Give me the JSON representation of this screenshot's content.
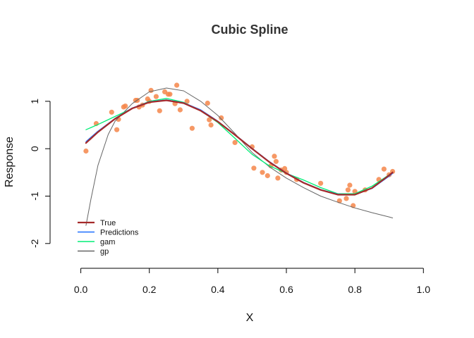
{
  "chart_data": {
    "type": "line",
    "title": "Cubic Spline",
    "xlabel": "X",
    "ylabel": "Response",
    "xlim": [
      -0.03,
      1.02
    ],
    "ylim": [
      -2.3,
      1.8
    ],
    "x_ticks": [
      0.0,
      0.2,
      0.4,
      0.6,
      0.8,
      1.0
    ],
    "x_tick_labels": [
      "0.0",
      "0.2",
      "0.4",
      "0.6",
      "0.8",
      "1.0"
    ],
    "y_ticks": [
      -2,
      -1,
      0,
      1
    ],
    "y_tick_labels": [
      "-2",
      "-1",
      "0",
      "1"
    ],
    "grid": false,
    "legend_position": "bottom-left",
    "points": {
      "color": "#f4864a",
      "x": [
        0.015,
        0.045,
        0.09,
        0.105,
        0.11,
        0.125,
        0.13,
        0.16,
        0.165,
        0.17,
        0.18,
        0.195,
        0.2,
        0.205,
        0.22,
        0.23,
        0.245,
        0.255,
        0.26,
        0.275,
        0.28,
        0.29,
        0.31,
        0.325,
        0.37,
        0.375,
        0.38,
        0.41,
        0.45,
        0.5,
        0.505,
        0.53,
        0.545,
        0.555,
        0.565,
        0.57,
        0.575,
        0.585,
        0.595,
        0.6,
        0.63,
        0.7,
        0.755,
        0.775,
        0.78,
        0.785,
        0.795,
        0.8,
        0.83,
        0.87,
        0.885,
        0.9,
        0.91
      ],
      "y": [
        -0.05,
        0.53,
        0.77,
        0.4,
        0.62,
        0.88,
        0.9,
        1.02,
        1.02,
        0.88,
        0.92,
        1.05,
        1.0,
        1.23,
        1.1,
        0.8,
        1.2,
        1.15,
        1.15,
        0.95,
        1.34,
        0.82,
        1.0,
        0.43,
        0.96,
        0.61,
        0.5,
        0.65,
        0.13,
        0.04,
        -0.41,
        -0.5,
        -0.57,
        -0.36,
        -0.16,
        -0.27,
        -0.62,
        -0.45,
        -0.42,
        -0.5,
        -0.65,
        -0.73,
        -1.1,
        -1.05,
        -0.87,
        -0.77,
        -1.2,
        -0.9,
        -0.87,
        -0.65,
        -0.43,
        -0.55,
        -0.48
      ]
    },
    "series": [
      {
        "name": "True",
        "color": "#a52a2a",
        "width": 2.2,
        "x": [
          0.015,
          0.05,
          0.1,
          0.15,
          0.2,
          0.25,
          0.3,
          0.35,
          0.4,
          0.45,
          0.5,
          0.55,
          0.6,
          0.65,
          0.7,
          0.75,
          0.8,
          0.85,
          0.9,
          0.91
        ],
        "y": [
          0.12,
          0.35,
          0.63,
          0.85,
          0.98,
          1.02,
          0.96,
          0.8,
          0.57,
          0.29,
          0.0,
          -0.28,
          -0.52,
          -0.72,
          -0.87,
          -0.97,
          -0.97,
          -0.83,
          -0.56,
          -0.5
        ]
      },
      {
        "name": "Predictions",
        "color": "#1e6fff",
        "width": 1.3,
        "x": [
          0.015,
          0.05,
          0.1,
          0.15,
          0.2,
          0.25,
          0.3,
          0.35,
          0.4,
          0.45,
          0.5,
          0.55,
          0.6,
          0.65,
          0.7,
          0.75,
          0.8,
          0.85,
          0.9,
          0.91
        ],
        "y": [
          0.15,
          0.37,
          0.64,
          0.86,
          0.99,
          1.03,
          0.97,
          0.82,
          0.58,
          0.3,
          0.01,
          -0.27,
          -0.51,
          -0.71,
          -0.86,
          -0.96,
          -0.97,
          -0.84,
          -0.58,
          -0.52
        ]
      },
      {
        "name": "gam",
        "color": "#00ee76",
        "width": 1.3,
        "x": [
          0.015,
          0.05,
          0.1,
          0.15,
          0.2,
          0.25,
          0.3,
          0.35,
          0.4,
          0.45,
          0.5,
          0.55,
          0.6,
          0.65,
          0.7,
          0.75,
          0.8,
          0.85,
          0.9,
          0.91
        ],
        "y": [
          0.4,
          0.51,
          0.68,
          0.85,
          1.0,
          1.06,
          0.98,
          0.8,
          0.55,
          0.22,
          -0.12,
          -0.36,
          -0.52,
          -0.66,
          -0.82,
          -0.95,
          -0.95,
          -0.79,
          -0.55,
          -0.5
        ]
      },
      {
        "name": "gp",
        "color": "#666666",
        "width": 1.0,
        "x": [
          0.015,
          0.03,
          0.05,
          0.08,
          0.1,
          0.15,
          0.2,
          0.25,
          0.3,
          0.35,
          0.4,
          0.45,
          0.5,
          0.55,
          0.6,
          0.65,
          0.7,
          0.75,
          0.8,
          0.85,
          0.9,
          0.91
        ],
        "y": [
          -1.62,
          -1.05,
          -0.35,
          0.3,
          0.58,
          0.95,
          1.2,
          1.28,
          1.22,
          1.0,
          0.7,
          0.32,
          -0.08,
          -0.38,
          -0.62,
          -0.82,
          -1.0,
          -1.13,
          -1.25,
          -1.35,
          -1.44,
          -1.46
        ]
      }
    ]
  }
}
